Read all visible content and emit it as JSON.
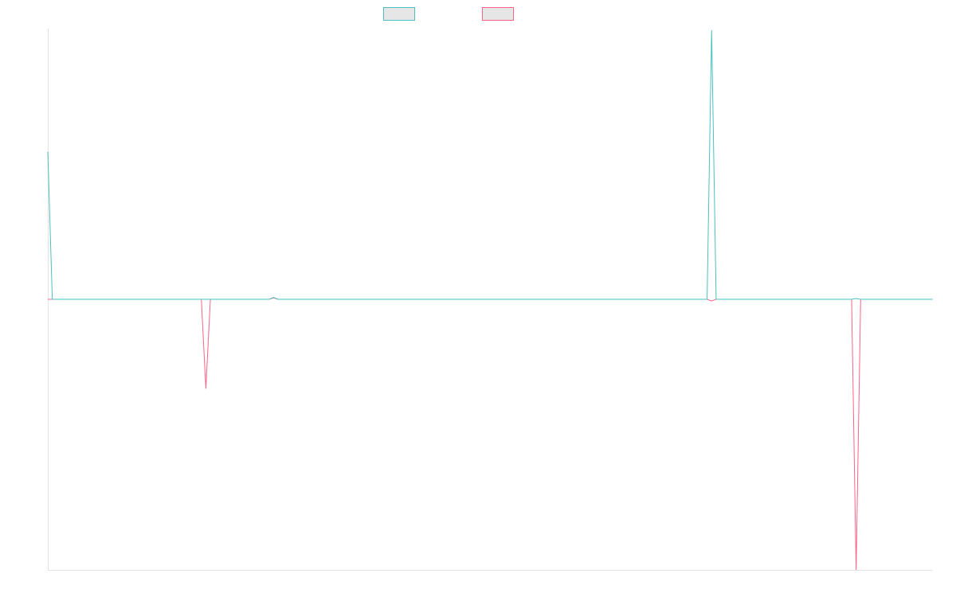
{
  "chart_data": {
    "type": "line",
    "title": "",
    "xlabel": "",
    "ylabel": "",
    "grid": false,
    "legend_position": "top-center",
    "ylim": [
      -100,
      100
    ],
    "y_zero": 0,
    "n_points": 197,
    "series": [
      {
        "color": "#4bc0c0",
        "fill_color": "#e6e6e6",
        "spikes": [
          {
            "index": 0,
            "value": 54.5
          },
          {
            "index": 50,
            "value": 0.7
          },
          {
            "index": 147,
            "value": 99.5
          },
          {
            "index": 179,
            "value": 0.3
          }
        ]
      },
      {
        "color": "#ff6384",
        "fill_color": "#e6e6e6",
        "spikes": [
          {
            "index": 35,
            "value": -33.0
          },
          {
            "index": 50,
            "value": 0.5
          },
          {
            "index": 147,
            "value": -0.6
          },
          {
            "index": 179,
            "value": -100.0
          }
        ]
      }
    ]
  }
}
